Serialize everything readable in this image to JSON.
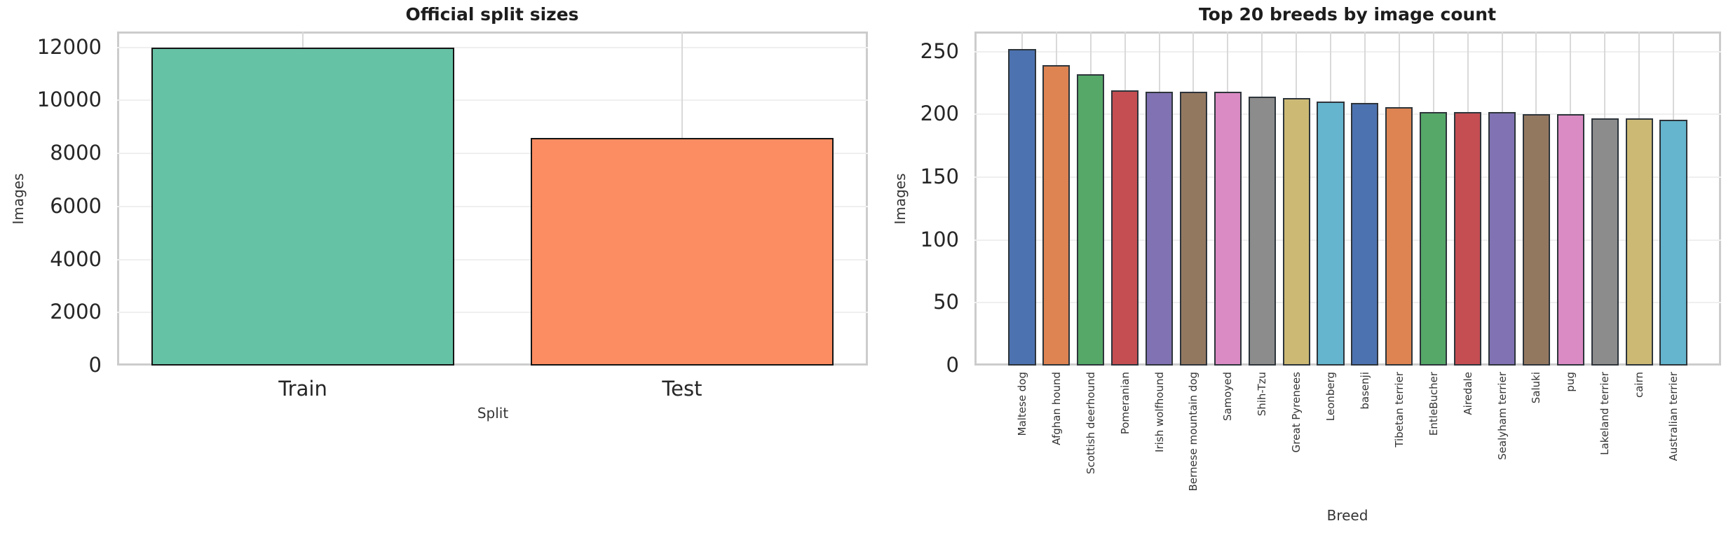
{
  "figure": {
    "background": "#ffffff",
    "grid_color_horizontal": "#efefef",
    "grid_color_vertical": "#d9d9d9",
    "spine_color": "#cccccc",
    "tick_text_color": "#262626",
    "title_text_color": "#1d1d1d"
  },
  "chart_data": [
    {
      "type": "bar",
      "title": "Official split sizes",
      "xlabel": "Split",
      "ylabel": "Images",
      "categories": [
        "Train",
        "Test"
      ],
      "values": [
        12000,
        8580
      ],
      "bar_colors": [
        "#66c2a5",
        "#fc8d62"
      ],
      "bar_edge_color": "#141414",
      "bar_edge_width": 2,
      "yticks": [
        0,
        2000,
        4000,
        6000,
        8000,
        10000,
        12000
      ],
      "ylim": [
        0,
        12600
      ],
      "grid": true,
      "x_tick_rotation": 0
    },
    {
      "type": "bar",
      "title": "Top 20 breeds by image count",
      "xlabel": "Breed",
      "ylabel": "Images",
      "categories": [
        "Maltese dog",
        "Afghan hound",
        "Scottish deerhound",
        "Pomeranian",
        "Irish wolfhound",
        "Bernese mountain dog",
        "Samoyed",
        "Shih-Tzu",
        "Great Pyrenees",
        "Leonberg",
        "basenji",
        "Tibetan terrier",
        "EntleBucher",
        "Airedale",
        "Sealyham terrier",
        "Saluki",
        "pug",
        "Lakeland terrier",
        "cairn",
        "Australian terrier"
      ],
      "values": [
        252,
        239,
        232,
        219,
        218,
        218,
        218,
        214,
        213,
        210,
        209,
        206,
        202,
        202,
        202,
        200,
        200,
        197,
        197,
        196
      ],
      "bar_colors": [
        "#4c72b0",
        "#dd8452",
        "#55a868",
        "#c44e52",
        "#8172b3",
        "#937860",
        "#da8bc3",
        "#8c8c8c",
        "#ccb974",
        "#64b5cd",
        "#4c72b0",
        "#dd8452",
        "#55a868",
        "#c44e52",
        "#8172b3",
        "#937860",
        "#da8bc3",
        "#8c8c8c",
        "#ccb974",
        "#64b5cd"
      ],
      "bar_edge_color": "#2e353b",
      "bar_edge_width": 2,
      "yticks": [
        0,
        50,
        100,
        150,
        200,
        250
      ],
      "ylim": [
        0,
        266
      ],
      "grid": true,
      "x_tick_rotation": 90
    }
  ]
}
